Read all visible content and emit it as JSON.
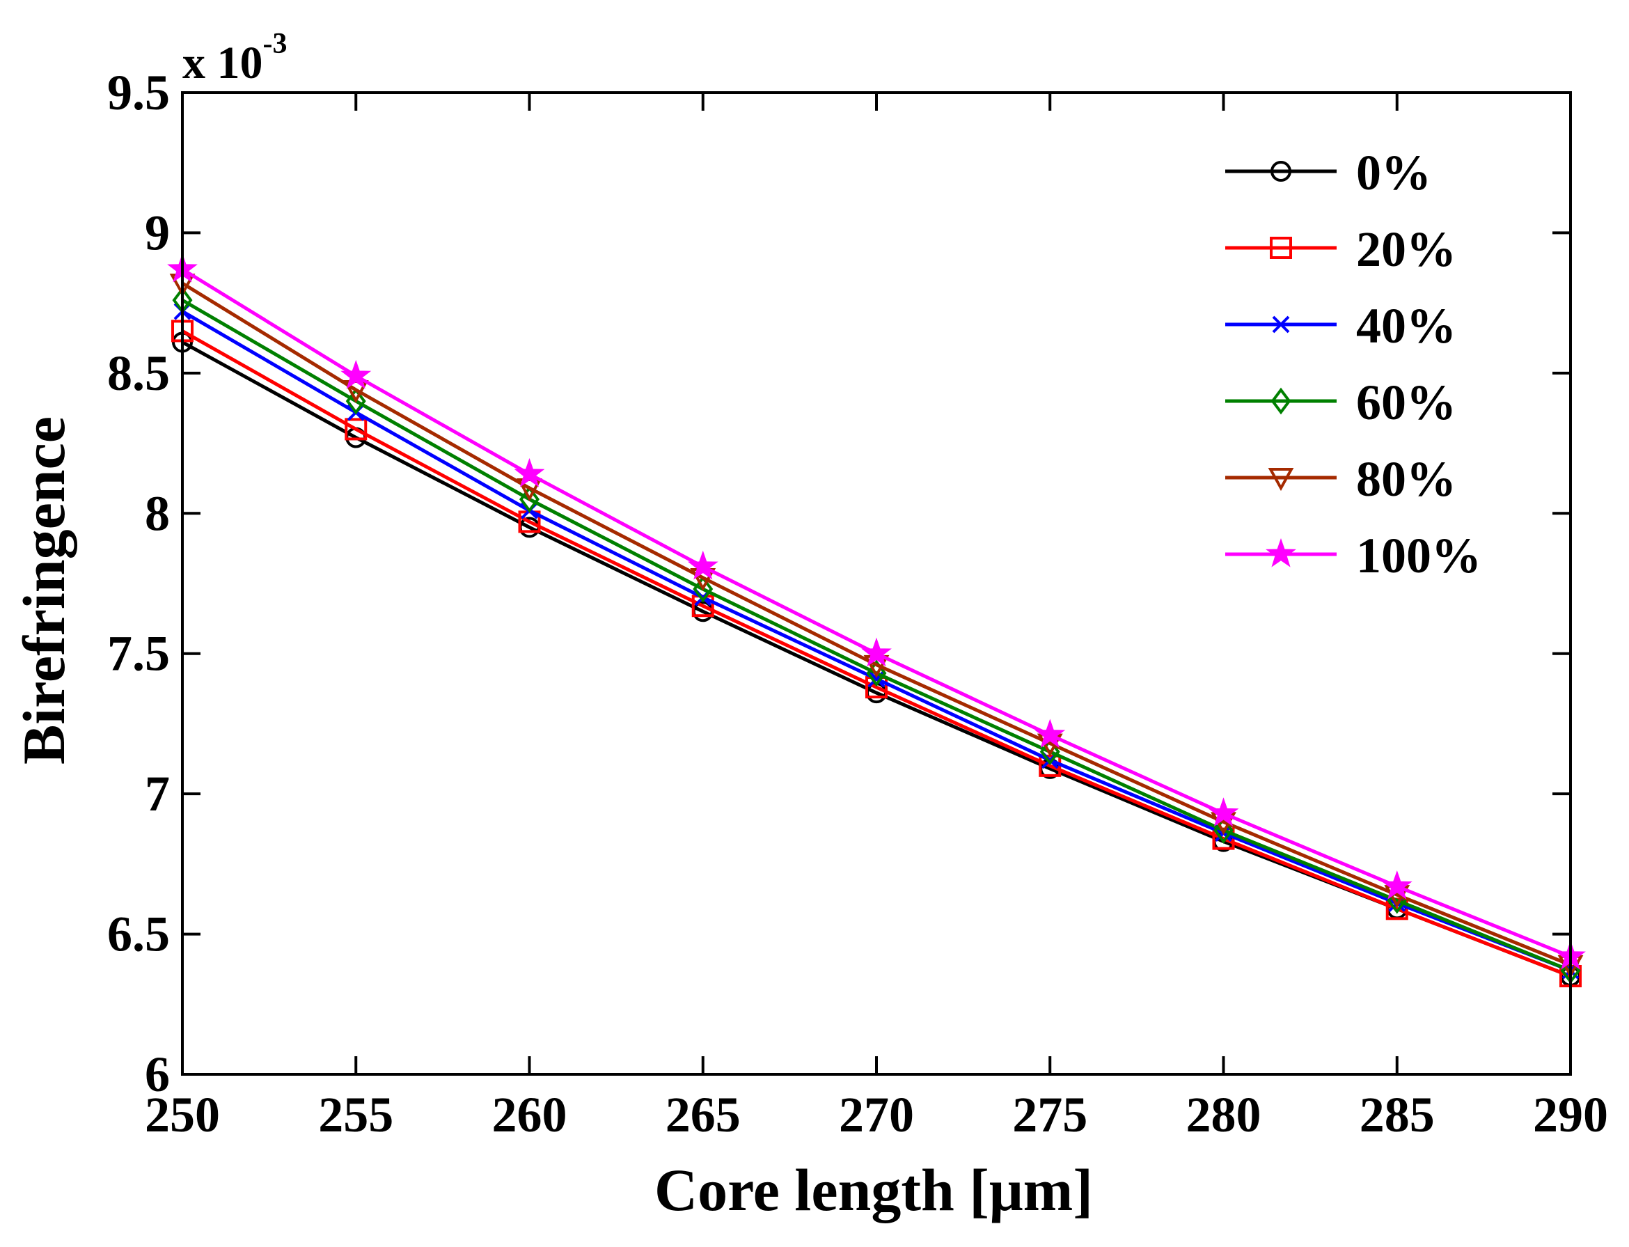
{
  "chart_data": {
    "type": "line",
    "title": "",
    "xlabel": "Core length [μm]",
    "ylabel": "Birefringence",
    "y_multiplier": {
      "base": "x 10",
      "exponent": "-3"
    },
    "xlim": [
      250,
      290
    ],
    "ylim": [
      6.0,
      9.5
    ],
    "x_ticks": [
      "250",
      "255",
      "260",
      "265",
      "270",
      "275",
      "280",
      "285",
      "290"
    ],
    "y_ticks": [
      "6",
      "6.5",
      "7",
      "7.5",
      "8",
      "8.5",
      "9",
      "9.5"
    ],
    "x": [
      250,
      255,
      260,
      265,
      270,
      275,
      280,
      285,
      290
    ],
    "grid": false,
    "legend_position": "top-right",
    "series": [
      {
        "name": "0%",
        "color": "#000000",
        "marker": "circle",
        "values": [
          8.61,
          8.27,
          7.95,
          7.65,
          7.36,
          7.09,
          6.83,
          6.59,
          6.35
        ]
      },
      {
        "name": "20%",
        "color": "#ff0000",
        "marker": "square",
        "values": [
          8.65,
          8.3,
          7.97,
          7.67,
          7.38,
          7.1,
          6.84,
          6.59,
          6.35
        ]
      },
      {
        "name": "40%",
        "color": "#0000ff",
        "marker": "x",
        "values": [
          8.72,
          8.36,
          8.01,
          7.7,
          7.41,
          7.12,
          6.86,
          6.61,
          6.37
        ]
      },
      {
        "name": "60%",
        "color": "#008000",
        "marker": "diamond",
        "values": [
          8.76,
          8.4,
          8.05,
          7.73,
          7.43,
          7.15,
          6.87,
          6.62,
          6.37
        ]
      },
      {
        "name": "80%",
        "color": "#a52a00",
        "marker": "triangle-down",
        "values": [
          8.82,
          8.44,
          8.09,
          7.77,
          7.46,
          7.18,
          6.9,
          6.64,
          6.39
        ]
      },
      {
        "name": "100%",
        "color": "#ff00ff",
        "marker": "star",
        "values": [
          8.87,
          8.49,
          8.14,
          7.81,
          7.5,
          7.21,
          6.93,
          6.67,
          6.42
        ]
      }
    ]
  }
}
